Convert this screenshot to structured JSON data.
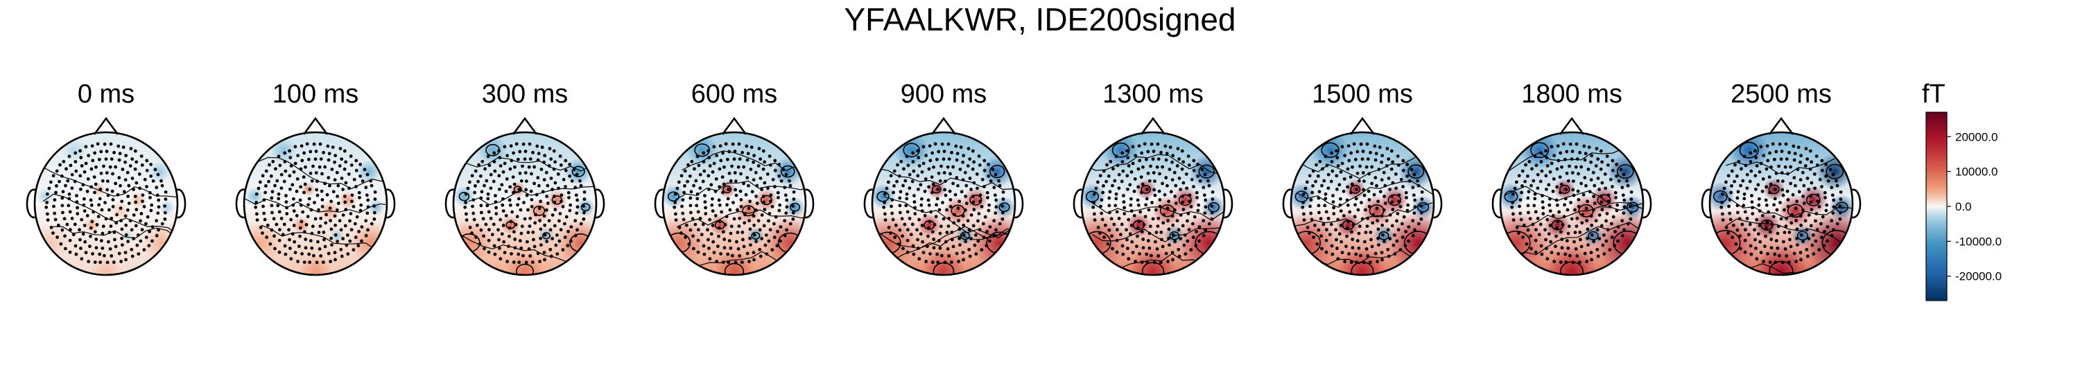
{
  "chart_data": {
    "type": "heatmap",
    "title": "YFAALKWR, IDE200signed",
    "panels": [
      {
        "label": "0 ms",
        "intensity": 0.15
      },
      {
        "label": "100 ms",
        "intensity": 0.25
      },
      {
        "label": "300 ms",
        "intensity": 0.4
      },
      {
        "label": "600 ms",
        "intensity": 0.55
      },
      {
        "label": "900 ms",
        "intensity": 0.7
      },
      {
        "label": "1300 ms",
        "intensity": 0.8
      },
      {
        "label": "1500 ms",
        "intensity": 0.85
      },
      {
        "label": "1800 ms",
        "intensity": 0.9
      },
      {
        "label": "2500 ms",
        "intensity": 1.0
      }
    ],
    "colorbar": {
      "unit": "fT",
      "range": [
        -27000,
        27000
      ],
      "ticks": [
        {
          "value": 20000,
          "label": "20000.0"
        },
        {
          "value": 10000,
          "label": "10000.0"
        },
        {
          "value": 0,
          "label": "0.0"
        },
        {
          "value": -10000,
          "label": "-10000.0"
        },
        {
          "value": -20000,
          "label": "-20000.0"
        }
      ],
      "colormap": "RdBu_r"
    },
    "colors": {
      "positive": "#a50f15",
      "neutral": "#f7f7f7",
      "negative": "#08519c"
    }
  }
}
